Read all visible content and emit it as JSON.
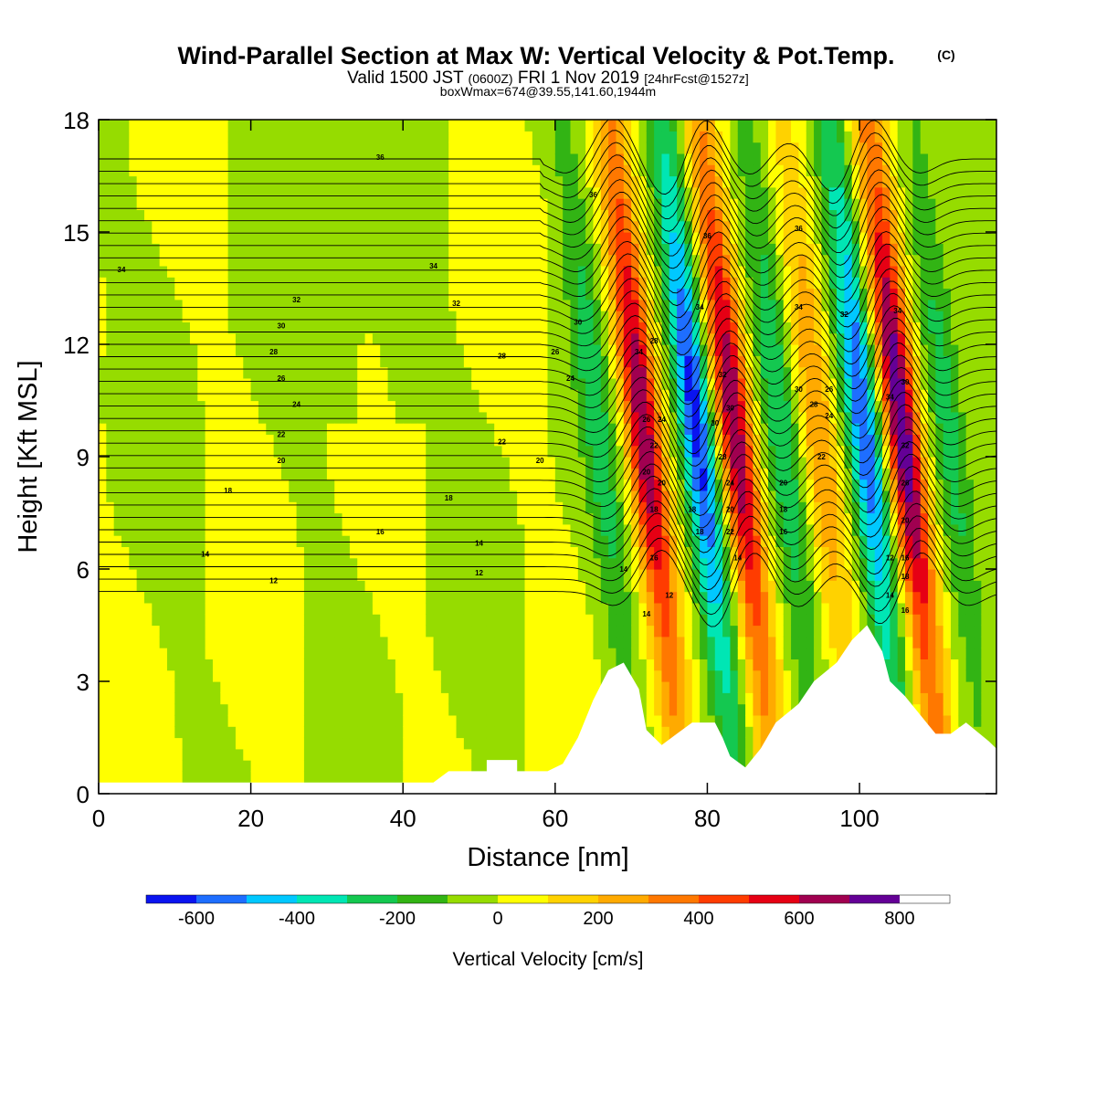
{
  "title": {
    "main": "Wind-Parallel Section at Max W: Vertical Velocity & Pot.Temp.",
    "copyright": "(C)",
    "valid_prefix": "Valid 1500 JST",
    "valid_utc": "(0600Z)",
    "valid_date": "FRI 1 Nov 2019",
    "forecast": "[24hrFcst@1527z]",
    "box_info": "boxWmax=674@39.55,141.60,1944m"
  },
  "colors": {
    "background": "#ffffff",
    "terrain": "#ffffff",
    "contour": "#000000",
    "scale": [
      "#0a14f0",
      "#1e6eff",
      "#00c8ff",
      "#00e6b4",
      "#14c850",
      "#32b414",
      "#96dc00",
      "#ffff00",
      "#ffd200",
      "#ffaa00",
      "#ff7800",
      "#ff3c00",
      "#e60014",
      "#a00050",
      "#640096"
    ]
  },
  "chart_data": {
    "type": "heatmap",
    "xlabel": "Distance [nm]",
    "ylabel": "Height [Kft MSL]",
    "colorbar_label": "Vertical Velocity [cm/s]",
    "xlim": [
      0,
      118
    ],
    "ylim": [
      0,
      18
    ],
    "x_ticks": [
      0,
      20,
      40,
      60,
      80,
      100
    ],
    "y_ticks": [
      0,
      3,
      6,
      9,
      12,
      15,
      18
    ],
    "colorbar": {
      "boundaries": [
        -700,
        -600,
        -500,
        -400,
        -300,
        -200,
        -100,
        0,
        100,
        200,
        300,
        400,
        500,
        600,
        700,
        800,
        900
      ],
      "tick_values": [
        -600,
        -400,
        -200,
        0,
        200,
        400,
        600,
        800
      ],
      "tick_labels": [
        "-600",
        "-400",
        "-200",
        "0",
        "200",
        "400",
        "600",
        "800"
      ]
    },
    "vertical_velocity_features": [
      {
        "x": 66,
        "w": -250
      },
      {
        "x": 72,
        "w": 700
      },
      {
        "x": 79,
        "w": -650
      },
      {
        "x": 84,
        "w": 700
      },
      {
        "x": 90,
        "w": -300
      },
      {
        "x": 95,
        "w": 300
      },
      {
        "x": 101,
        "w": -600
      },
      {
        "x": 106,
        "w": 800
      },
      {
        "x": 112,
        "w": -250
      }
    ],
    "terrain_profile": [
      {
        "x": 0,
        "h": 0.3
      },
      {
        "x": 44,
        "h": 0.3
      },
      {
        "x": 46,
        "h": 0.6
      },
      {
        "x": 51,
        "h": 0.6
      },
      {
        "x": 51,
        "h": 0.9
      },
      {
        "x": 55,
        "h": 0.9
      },
      {
        "x": 55,
        "h": 0.6
      },
      {
        "x": 59,
        "h": 0.6
      },
      {
        "x": 61,
        "h": 0.8
      },
      {
        "x": 63,
        "h": 1.5
      },
      {
        "x": 65,
        "h": 2.5
      },
      {
        "x": 67,
        "h": 3.3
      },
      {
        "x": 69,
        "h": 3.5
      },
      {
        "x": 71,
        "h": 2.8
      },
      {
        "x": 72,
        "h": 1.7
      },
      {
        "x": 74,
        "h": 1.3
      },
      {
        "x": 76,
        "h": 1.6
      },
      {
        "x": 78,
        "h": 1.9
      },
      {
        "x": 81,
        "h": 1.9
      },
      {
        "x": 82,
        "h": 1.5
      },
      {
        "x": 83,
        "h": 1.0
      },
      {
        "x": 85,
        "h": 0.7
      },
      {
        "x": 87,
        "h": 1.2
      },
      {
        "x": 89,
        "h": 1.9
      },
      {
        "x": 92,
        "h": 2.4
      },
      {
        "x": 94,
        "h": 3.0
      },
      {
        "x": 97,
        "h": 3.5
      },
      {
        "x": 99,
        "h": 4.1
      },
      {
        "x": 101,
        "h": 4.5
      },
      {
        "x": 103,
        "h": 3.8
      },
      {
        "x": 104,
        "h": 3.0
      },
      {
        "x": 106,
        "h": 2.6
      },
      {
        "x": 108,
        "h": 2.1
      },
      {
        "x": 110,
        "h": 1.6
      },
      {
        "x": 112,
        "h": 1.6
      },
      {
        "x": 114,
        "h": 1.9
      },
      {
        "x": 117,
        "h": 1.4
      },
      {
        "x": 118,
        "h": 1.2
      }
    ],
    "theta_contour_labels": [
      {
        "x": 37,
        "y": 17.0,
        "text": "36"
      },
      {
        "x": 3,
        "y": 14.0,
        "text": "34"
      },
      {
        "x": 44,
        "y": 14.1,
        "text": "34"
      },
      {
        "x": 26,
        "y": 13.2,
        "text": "32"
      },
      {
        "x": 47,
        "y": 13.1,
        "text": "32"
      },
      {
        "x": 24,
        "y": 12.5,
        "text": "30"
      },
      {
        "x": 23,
        "y": 11.8,
        "text": "28"
      },
      {
        "x": 24,
        "y": 11.1,
        "text": "26"
      },
      {
        "x": 26,
        "y": 10.4,
        "text": "24"
      },
      {
        "x": 24,
        "y": 9.6,
        "text": "22"
      },
      {
        "x": 24,
        "y": 8.9,
        "text": "20"
      },
      {
        "x": 17,
        "y": 8.1,
        "text": "18"
      },
      {
        "x": 14,
        "y": 6.4,
        "text": "14"
      },
      {
        "x": 23,
        "y": 5.7,
        "text": "12"
      },
      {
        "x": 37,
        "y": 7.0,
        "text": "16"
      },
      {
        "x": 46,
        "y": 7.9,
        "text": "18"
      },
      {
        "x": 50,
        "y": 6.7,
        "text": "14"
      },
      {
        "x": 50,
        "y": 5.9,
        "text": "12"
      },
      {
        "x": 53,
        "y": 11.7,
        "text": "28"
      },
      {
        "x": 53,
        "y": 9.4,
        "text": "22"
      },
      {
        "x": 58,
        "y": 8.9,
        "text": "20"
      },
      {
        "x": 60,
        "y": 11.8,
        "text": "26"
      },
      {
        "x": 63,
        "y": 12.6,
        "text": "30"
      },
      {
        "x": 62,
        "y": 11.1,
        "text": "24"
      },
      {
        "x": 65,
        "y": 16.0,
        "text": "36"
      },
      {
        "x": 69,
        "y": 6.0,
        "text": "14"
      },
      {
        "x": 71,
        "y": 11.8,
        "text": "34"
      },
      {
        "x": 73,
        "y": 12.1,
        "text": "28"
      },
      {
        "x": 72,
        "y": 10.0,
        "text": "26"
      },
      {
        "x": 74,
        "y": 10.0,
        "text": "24"
      },
      {
        "x": 73,
        "y": 9.3,
        "text": "22"
      },
      {
        "x": 72,
        "y": 8.6,
        "text": "20"
      },
      {
        "x": 74,
        "y": 8.3,
        "text": "20"
      },
      {
        "x": 73,
        "y": 7.6,
        "text": "18"
      },
      {
        "x": 73,
        "y": 6.3,
        "text": "16"
      },
      {
        "x": 75,
        "y": 5.3,
        "text": "12"
      },
      {
        "x": 72,
        "y": 4.8,
        "text": "14"
      },
      {
        "x": 80,
        "y": 14.9,
        "text": "36"
      },
      {
        "x": 79,
        "y": 13.0,
        "text": "34"
      },
      {
        "x": 82,
        "y": 11.2,
        "text": "32"
      },
      {
        "x": 81,
        "y": 9.9,
        "text": "30"
      },
      {
        "x": 83,
        "y": 10.3,
        "text": "30"
      },
      {
        "x": 82,
        "y": 9.0,
        "text": "28"
      },
      {
        "x": 83,
        "y": 8.3,
        "text": "24"
      },
      {
        "x": 78,
        "y": 7.6,
        "text": "18"
      },
      {
        "x": 79,
        "y": 7.0,
        "text": "18"
      },
      {
        "x": 83,
        "y": 7.6,
        "text": "20"
      },
      {
        "x": 83,
        "y": 7.0,
        "text": "22"
      },
      {
        "x": 84,
        "y": 6.3,
        "text": "14"
      },
      {
        "x": 92,
        "y": 15.1,
        "text": "36"
      },
      {
        "x": 92,
        "y": 13.0,
        "text": "34"
      },
      {
        "x": 90,
        "y": 8.3,
        "text": "20"
      },
      {
        "x": 90,
        "y": 7.6,
        "text": "18"
      },
      {
        "x": 90,
        "y": 7.0,
        "text": "16"
      },
      {
        "x": 92,
        "y": 10.8,
        "text": "30"
      },
      {
        "x": 94,
        "y": 10.4,
        "text": "28"
      },
      {
        "x": 96,
        "y": 10.8,
        "text": "26"
      },
      {
        "x": 96,
        "y": 10.1,
        "text": "24"
      },
      {
        "x": 95,
        "y": 9.0,
        "text": "22"
      },
      {
        "x": 98,
        "y": 12.8,
        "text": "32"
      },
      {
        "x": 104,
        "y": 10.6,
        "text": "34"
      },
      {
        "x": 105,
        "y": 12.9,
        "text": "34"
      },
      {
        "x": 106,
        "y": 11.0,
        "text": "30"
      },
      {
        "x": 106,
        "y": 9.3,
        "text": "32"
      },
      {
        "x": 106,
        "y": 8.3,
        "text": "26"
      },
      {
        "x": 106,
        "y": 7.3,
        "text": "20"
      },
      {
        "x": 106,
        "y": 6.3,
        "text": "16"
      },
      {
        "x": 104,
        "y": 6.3,
        "text": "12"
      },
      {
        "x": 104,
        "y": 5.3,
        "text": "14"
      },
      {
        "x": 106,
        "y": 5.8,
        "text": "18"
      },
      {
        "x": 106,
        "y": 4.9,
        "text": "16"
      }
    ]
  }
}
